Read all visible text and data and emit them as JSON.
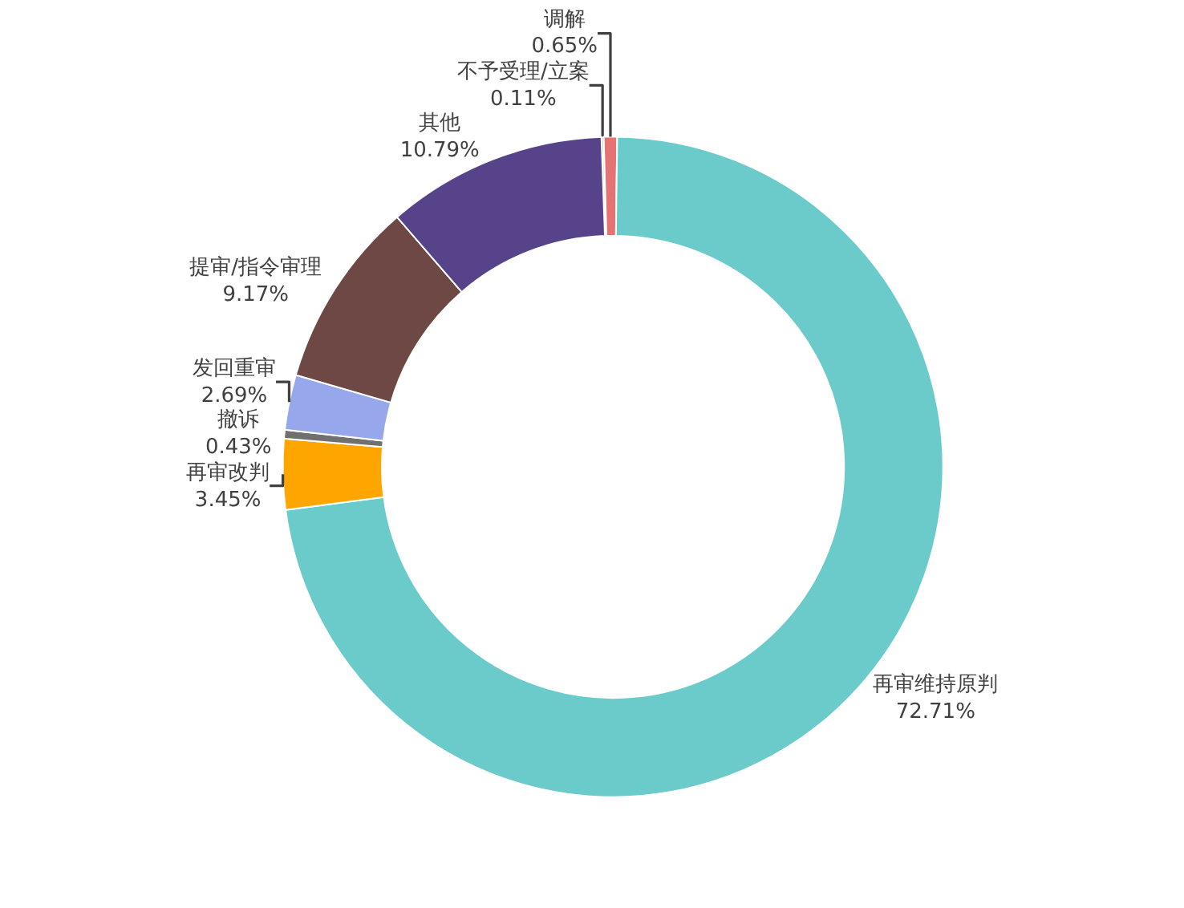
{
  "chart_data": {
    "type": "donut",
    "categories": [
      "不予受理/立案",
      "调解",
      "再审维持原判",
      "再审改判",
      "撤诉",
      "发回重审",
      "提审/指令审理",
      "其他"
    ],
    "values": [
      0.11,
      0.65,
      72.71,
      3.45,
      0.43,
      2.69,
      9.17,
      10.79
    ],
    "value_labels": [
      "0.11%",
      "0.65%",
      "72.71%",
      "3.45%",
      "0.43%",
      "2.69%",
      "9.17%",
      "10.79%"
    ],
    "colors": [
      "#a5d86b",
      "#e57373",
      "#6bcbca",
      "#ffa500",
      "#707070",
      "#96a7ec",
      "#6d4845",
      "#574389"
    ],
    "legend": false
  }
}
